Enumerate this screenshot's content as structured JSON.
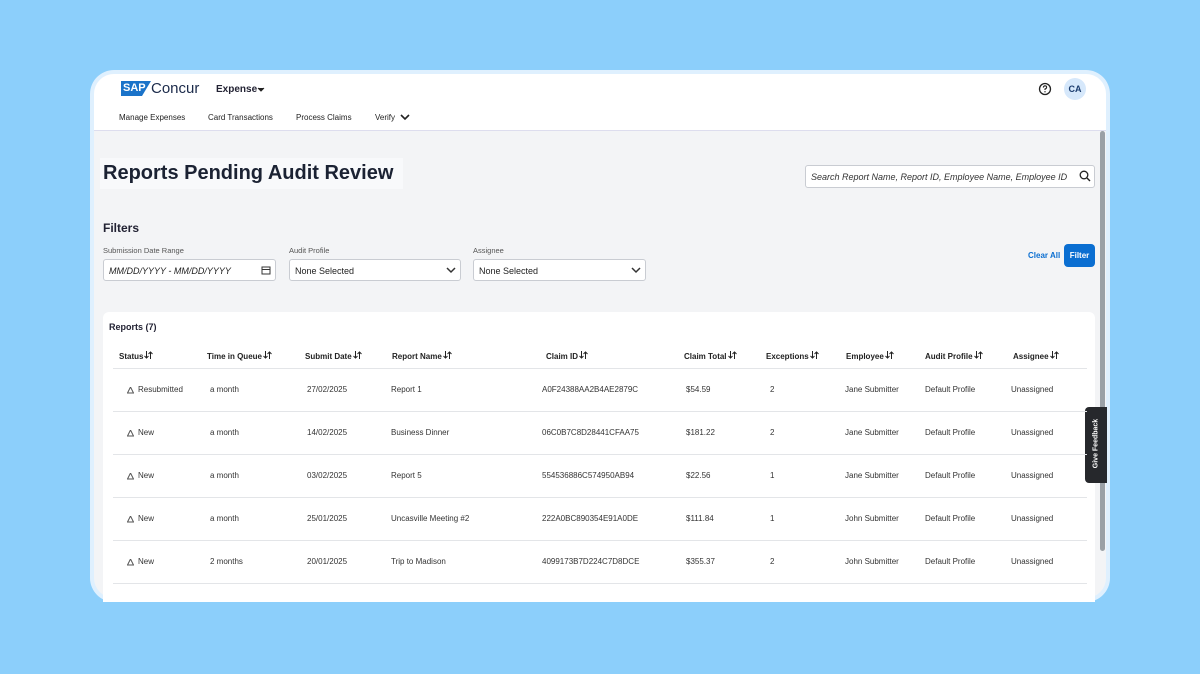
{
  "header": {
    "logo_mark": "SAP",
    "logo_text": "Concur",
    "product": "Expense",
    "avatar": "CA",
    "nav": [
      "Manage Expenses",
      "Card Transactions",
      "Process Claims",
      "Verify"
    ]
  },
  "page": {
    "title": "Reports Pending Audit Review",
    "search_placeholder": "Search Report Name, Report ID, Employee Name, Employee ID"
  },
  "filters": {
    "title": "Filters",
    "fields": [
      {
        "label": "Submission Date Range",
        "value": "MM/DD/YYYY - MM/DD/YYYY"
      },
      {
        "label": "Audit Profile",
        "value": "None Selected"
      },
      {
        "label": "Assignee",
        "value": "None Selected"
      }
    ],
    "clear": "Clear All",
    "apply": "Filter"
  },
  "table": {
    "title": "Reports (7)",
    "columns": [
      "Status",
      "Time in Queue",
      "Submit Date",
      "Report Name",
      "Claim ID",
      "Claim Total",
      "Exceptions",
      "Employee",
      "Audit Profile",
      "Assignee"
    ],
    "rows": [
      [
        "Resubmitted",
        "a month",
        "27/02/2025",
        "Report 1",
        "A0F24388AA2B4AE2879C",
        "$54.59",
        "2",
        "Jane Submitter",
        "Default Profile",
        "Unassigned"
      ],
      [
        "New",
        "a month",
        "14/02/2025",
        "Business Dinner",
        "06C0B7C8D28441CFAA75",
        "$181.22",
        "2",
        "Jane Submitter",
        "Default Profile",
        "Unassigned"
      ],
      [
        "New",
        "a month",
        "03/02/2025",
        "Report 5",
        "554536886C574950AB94",
        "$22.56",
        "1",
        "Jane Submitter",
        "Default Profile",
        "Unassigned"
      ],
      [
        "New",
        "a month",
        "25/01/2025",
        "Uncasville Meeting #2",
        "222A0BC890354E91A0DE",
        "$111.84",
        "1",
        "John Submitter",
        "Default Profile",
        "Unassigned"
      ],
      [
        "New",
        "2 months",
        "20/01/2025",
        "Trip to Madison",
        "4099173B7D224C7D8DCE",
        "$355.37",
        "2",
        "John Submitter",
        "Default Profile",
        "Unassigned"
      ]
    ]
  },
  "feedback": "Give Feedback"
}
